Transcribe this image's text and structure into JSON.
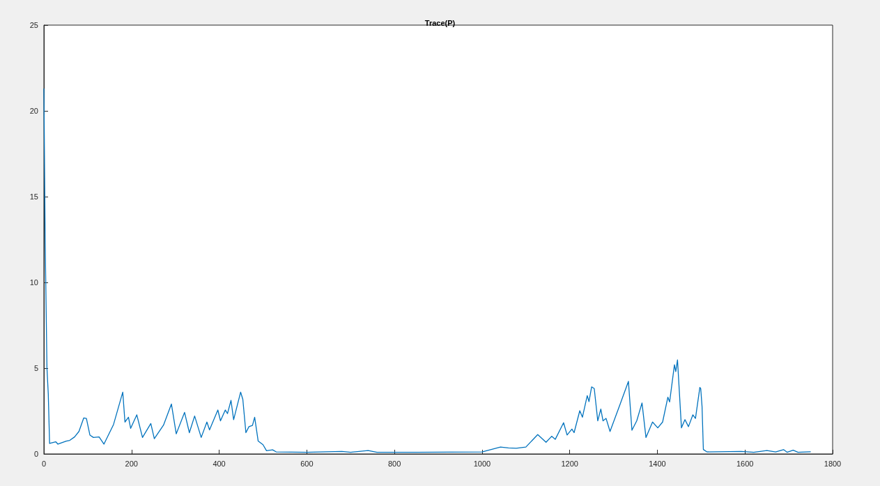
{
  "chart_data": {
    "type": "line",
    "title": "Trace(P)",
    "xlim": [
      0,
      1800
    ],
    "xticks": [
      0,
      200,
      400,
      600,
      800,
      1000,
      1200,
      1400,
      1600,
      1800
    ],
    "ylim": [
      0,
      25
    ],
    "yticks": [
      0,
      5,
      10,
      15,
      20,
      25
    ],
    "grid": false,
    "marker": "none",
    "line_style": "solid",
    "series": [
      {
        "color": "#0072bd",
        "x": [
          0,
          3,
          7,
          10,
          13,
          27,
          32,
          51,
          59,
          70,
          80,
          91,
          97,
          105,
          113,
          126,
          137,
          159,
          180,
          185,
          193,
          198,
          212,
          225,
          244,
          252,
          273,
          291,
          302,
          321,
          332,
          344,
          359,
          372,
          378,
          397,
          403,
          414,
          419,
          427,
          433,
          449,
          454,
          461,
          468,
          476,
          481,
          489,
          500,
          508,
          522,
          530,
          600,
          680,
          700,
          740,
          760,
          850,
          1000,
          1042,
          1060,
          1078,
          1100,
          1127,
          1146,
          1159,
          1167,
          1186,
          1194,
          1205,
          1210,
          1223,
          1229,
          1240,
          1244,
          1250,
          1256,
          1264,
          1271,
          1276,
          1283,
          1292,
          1315,
          1334,
          1342,
          1353,
          1365,
          1374,
          1389,
          1401,
          1412,
          1424,
          1428,
          1439,
          1442,
          1446,
          1455,
          1463,
          1471,
          1481,
          1487,
          1497,
          1499,
          1502,
          1505,
          1513,
          1591,
          1620,
          1650,
          1670,
          1688,
          1696,
          1710,
          1721,
          1750
        ],
        "values": [
          21.3,
          12.3,
          5,
          3.5,
          0.61,
          0.71,
          0.57,
          0.75,
          0.79,
          0.99,
          1.31,
          2.1,
          2.07,
          1.1,
          0.96,
          0.99,
          0.57,
          1.72,
          3.6,
          1.86,
          2.14,
          1.49,
          2.28,
          0.96,
          1.77,
          0.89,
          1.68,
          2.91,
          1.17,
          2.42,
          1.24,
          2.21,
          0.96,
          1.86,
          1.4,
          2.56,
          1.93,
          2.56,
          2.35,
          3.12,
          2.0,
          3.6,
          3.18,
          1.24,
          1.59,
          1.66,
          2.14,
          0.75,
          0.54,
          0.19,
          0.24,
          0.12,
          0.1,
          0.15,
          0.1,
          0.2,
          0.1,
          0.1,
          0.12,
          0.4,
          0.35,
          0.33,
          0.4,
          1.13,
          0.68,
          1.03,
          0.85,
          1.82,
          1.1,
          1.45,
          1.24,
          2.52,
          2.14,
          3.4,
          3.05,
          3.91,
          3.81,
          1.93,
          2.62,
          1.93,
          2.07,
          1.31,
          2.9,
          4.23,
          1.38,
          1.93,
          2.97,
          0.96,
          1.86,
          1.52,
          1.86,
          3.31,
          3.03,
          5.2,
          4.8,
          5.48,
          1.52,
          2.0,
          1.59,
          2.28,
          2.07,
          3.88,
          3.81,
          2.77,
          0.26,
          0.12,
          0.15,
          0.1,
          0.2,
          0.12,
          0.25,
          0.1,
          0.22,
          0.1,
          0.13
        ]
      }
    ]
  }
}
